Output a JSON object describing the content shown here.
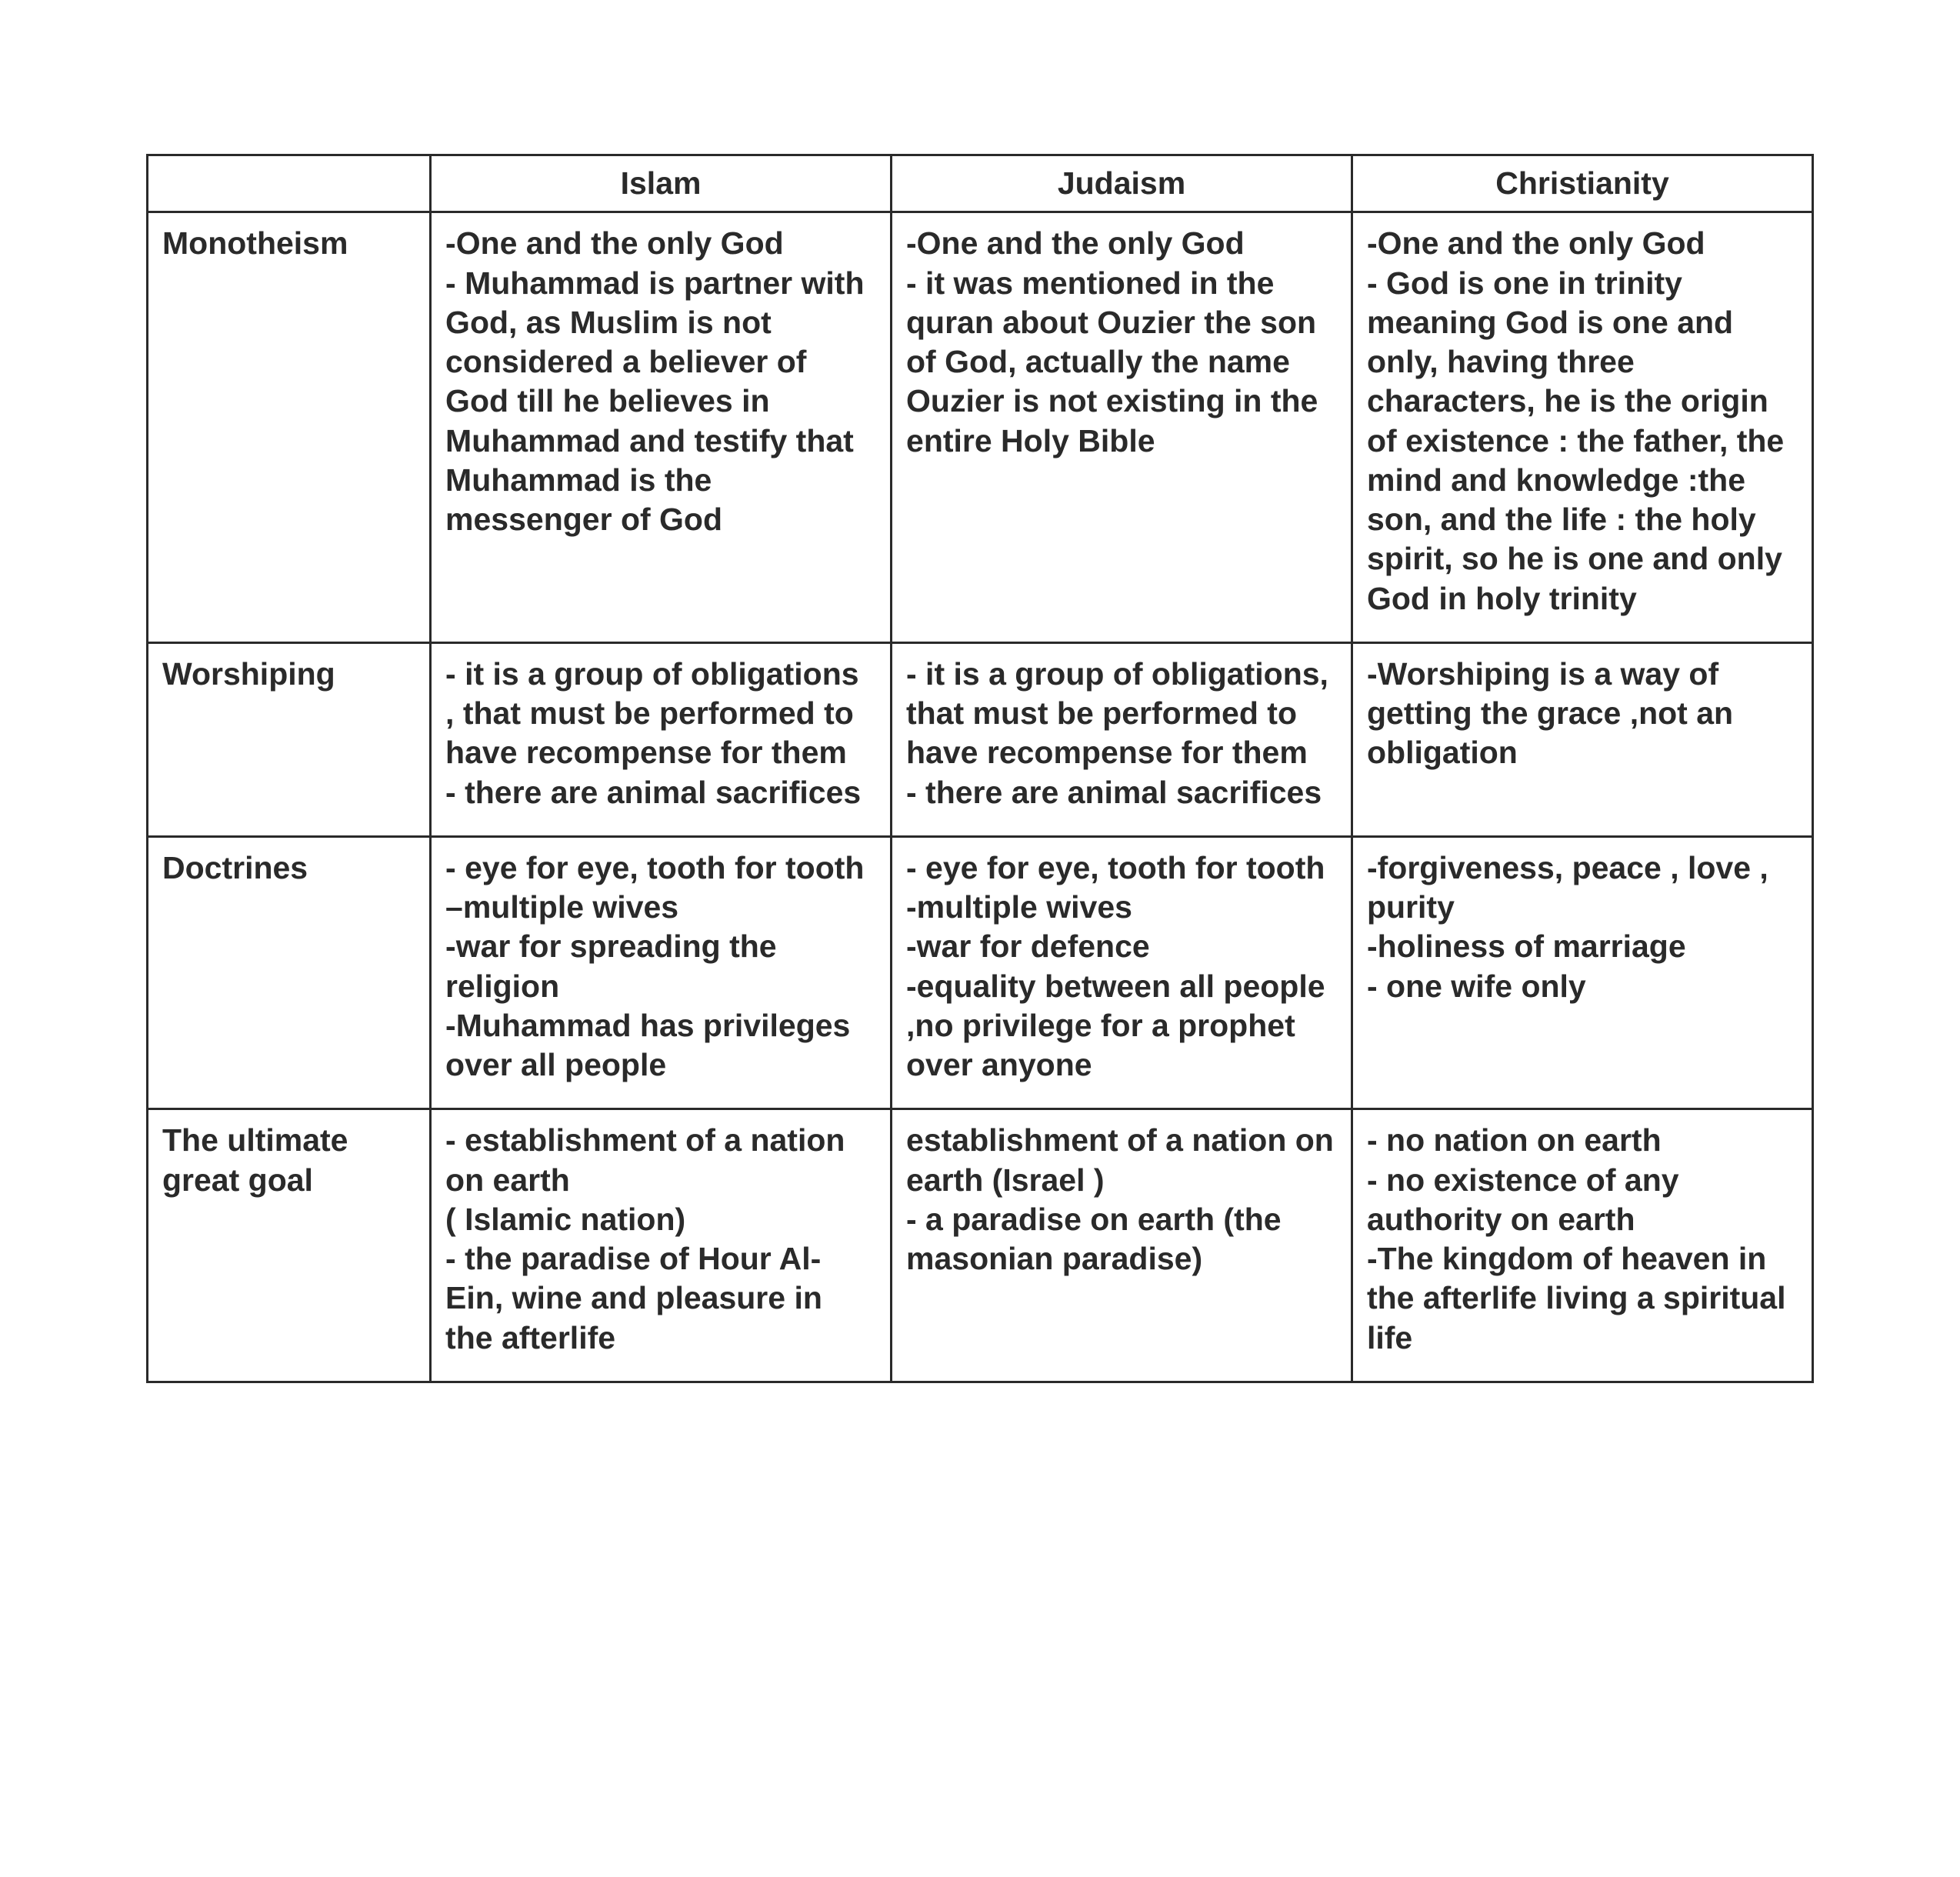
{
  "page_background": "#ffffff",
  "text_color": "#2a2a2a",
  "border_color": "#2a2a2a",
  "font_family": "Arial",
  "font_size_pt": 31,
  "font_weight": "bold",
  "table": {
    "columns": [
      "Islam",
      "Judaism",
      "Christianity"
    ],
    "column_widths_pct": [
      17,
      27.6667,
      27.6667,
      27.6667
    ],
    "header_align": "center",
    "cell_align": "left",
    "rows": [
      {
        "label": "Monotheism",
        "cells": [
          "-One and the only God\n- Muhammad is partner with God, as Muslim is not considered a believer of God till he believes in Muhammad and testify that Muhammad is the messenger of God",
          "-One and the only God\n- it was mentioned in the quran about Ouzier the son of God, actually the name Ouzier is not existing in the entire Holy Bible",
          "-One and the only God\n- God is one in trinity meaning God is one and only, having three characters, he is the origin of existence : the father, the mind and knowledge :the son, and the life : the holy spirit, so he is one and only God in holy trinity"
        ]
      },
      {
        "label": "Worshiping",
        "cells": [
          "- it is a group of obligations , that must be performed to have recompense for them\n- there are animal sacrifices",
          "- it is a group of obligations, that must be performed to have recompense for them\n- there are animal sacrifices",
          "-Worshiping is a way of getting the grace ,not an obligation"
        ]
      },
      {
        "label": "Doctrines",
        "cells": [
          "- eye for eye, tooth for tooth\n–multiple wives\n-war for spreading the religion\n-Muhammad has privileges over all people",
          "- eye for eye, tooth for tooth\n-multiple wives\n-war for defence\n-equality between all people ,no privilege for a prophet over anyone",
          "-forgiveness, peace , love , purity\n-holiness of marriage\n- one wife only"
        ]
      },
      {
        "label": "The ultimate great goal",
        "cells": [
          "- establishment of a nation on earth\n( Islamic nation)\n- the paradise of Hour Al-Ein, wine and pleasure in the afterlife",
          "establishment of a nation on earth (Israel )\n- a paradise on earth (the masonian paradise)",
          "- no nation on earth\n- no existence of any authority on earth\n-The kingdom of heaven in the afterlife living a spiritual life"
        ]
      }
    ]
  }
}
